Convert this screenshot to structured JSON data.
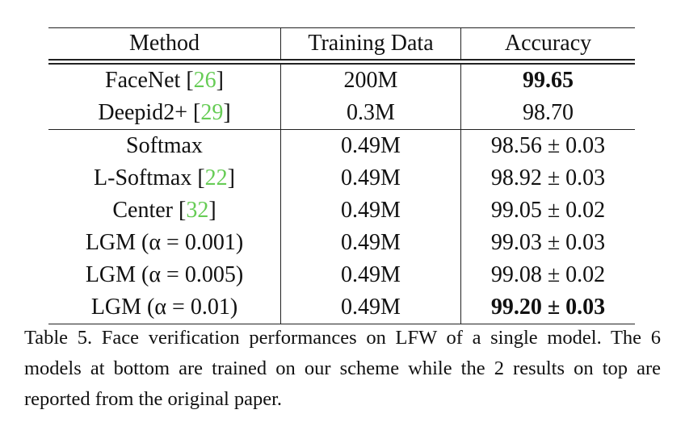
{
  "table": {
    "columns": [
      "Method",
      "Training Data",
      "Accuracy"
    ],
    "groups": [
      [
        {
          "method": "FaceNet [26]",
          "data": "200M",
          "accuracy": "99.65",
          "bold": true
        },
        {
          "method": "Deepid2+ [29]",
          "data": "0.3M",
          "accuracy": "98.70",
          "bold": false
        }
      ],
      [
        {
          "method": "Softmax",
          "data": "0.49M",
          "accuracy": "98.56 ± 0.03",
          "bold": false
        },
        {
          "method": "L-Softmax [22]",
          "data": "0.49M",
          "accuracy": "98.92 ± 0.03",
          "bold": false
        },
        {
          "method": "Center [32]",
          "data": "0.49M",
          "accuracy": "99.05 ± 0.02",
          "bold": false
        },
        {
          "method": "LGM (α = 0.001)",
          "data": "0.49M",
          "accuracy": "99.03 ± 0.03",
          "bold": false
        },
        {
          "method": "LGM (α = 0.005)",
          "data": "0.49M",
          "accuracy": "99.08 ± 0.02",
          "bold": false
        },
        {
          "method": "LGM (α = 0.01)",
          "data": "0.49M",
          "accuracy": "99.20 ± 0.03",
          "bold": true
        }
      ]
    ]
  },
  "caption": "Table 5. Face verification performances on LFW of a single model. The 6 models at bottom are trained on our scheme while the 2 results on top are reported from the original paper."
}
